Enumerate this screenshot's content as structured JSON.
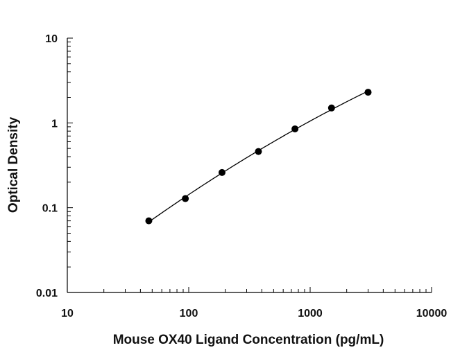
{
  "chart_data": {
    "type": "scatter",
    "title": "",
    "xlabel": "Mouse OX40 Ligand Concentration (pg/mL)",
    "ylabel": "Optical Density",
    "x_scale": "log",
    "y_scale": "log",
    "xlim": [
      10,
      10000
    ],
    "ylim": [
      0.01,
      10
    ],
    "x_ticks": [
      "10",
      "100",
      "1000",
      "10000"
    ],
    "y_ticks": [
      "0.01",
      "0.1",
      "1",
      "10"
    ],
    "grid": false,
    "legend": "none",
    "series": [
      {
        "points": [
          {
            "x": 46.9,
            "y": 0.07
          },
          {
            "x": 93.8,
            "y": 0.128
          },
          {
            "x": 188,
            "y": 0.26
          },
          {
            "x": 375,
            "y": 0.46
          },
          {
            "x": 750,
            "y": 0.85
          },
          {
            "x": 1500,
            "y": 1.5
          },
          {
            "x": 3000,
            "y": 2.3
          }
        ],
        "fit_curve": true,
        "color": "#000000"
      }
    ]
  }
}
